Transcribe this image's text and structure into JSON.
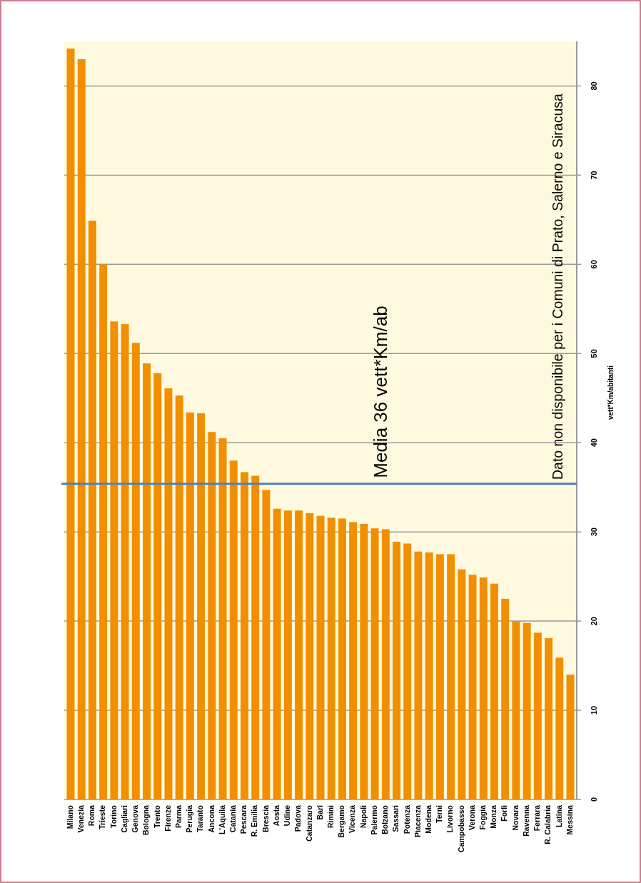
{
  "chart_data": {
    "type": "bar",
    "ylabel": "vett*Km/abitanti",
    "categories": [
      "Milano",
      "Venezia",
      "Roma",
      "Trieste",
      "Torino",
      "Cagliari",
      "Genova",
      "Bologna",
      "Trento",
      "Firenze",
      "Parma",
      "Perugia",
      "Taranto",
      "Ancona",
      "L'Aquila",
      "Catania",
      "Pescara",
      "R. Emilia",
      "Brescia",
      "Aosta",
      "Udine",
      "Padova",
      "Catanzaro",
      "Bari",
      "Rimini",
      "Bergamo",
      "Vicenza",
      "Napoli",
      "Palermo",
      "Bolzano",
      "Sassari",
      "Potenza",
      "Piacenza",
      "Modena",
      "Terni",
      "Livorno",
      "Campobasso",
      "Verona",
      "Foggia",
      "Monza",
      "Forlì",
      "Novara",
      "Ravenna",
      "Ferrara",
      "R. Calabria",
      "Latina",
      "Messina"
    ],
    "values": [
      84.2,
      83.0,
      64.9,
      60.0,
      53.6,
      53.3,
      51.2,
      48.9,
      47.8,
      46.1,
      45.3,
      43.4,
      43.3,
      41.2,
      40.5,
      38.0,
      36.7,
      36.3,
      34.7,
      32.6,
      32.4,
      32.4,
      32.1,
      31.8,
      31.6,
      31.5,
      31.1,
      30.9,
      30.4,
      30.3,
      28.9,
      28.7,
      27.8,
      27.7,
      27.5,
      27.5,
      25.8,
      25.2,
      24.9,
      24.2,
      22.5,
      20.0,
      19.8,
      18.7,
      18.1,
      15.9,
      14.0
    ],
    "color": "#f18f01",
    "ylim": [
      0,
      85
    ],
    "yticks": [
      0,
      10,
      20,
      30,
      40,
      50,
      60,
      70,
      80
    ],
    "grid": "y",
    "ref_lines": [
      {
        "axis": "y",
        "value": 35.4,
        "label": "Media 36 vett*Km/ab",
        "color": "#4f81bd"
      }
    ],
    "annotations": [
      "Dato non disponibile per i Comuni di Prato, Salerno e Siracusa"
    ]
  }
}
